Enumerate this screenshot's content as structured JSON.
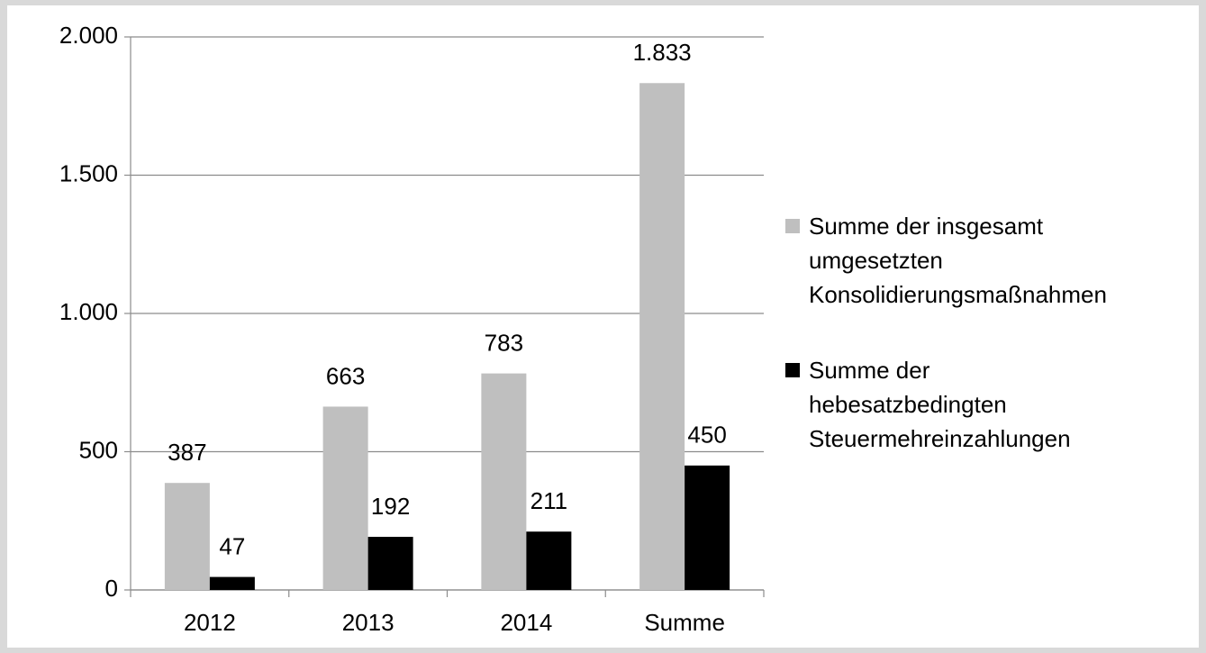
{
  "chart_data": {
    "type": "bar",
    "categories": [
      "2012",
      "2013",
      "2014",
      "Summe"
    ],
    "series": [
      {
        "name": "Summe der insgesamt umgesetzten Konsolidierungsmaßnahmen",
        "color": "#bfbfbf",
        "values": [
          387,
          663,
          783,
          1833
        ],
        "value_labels": [
          "387",
          "663",
          "783",
          "1.833"
        ]
      },
      {
        "name": "Summe der hebesatzbedingten Steuermehreinzahlungen",
        "color": "#000000",
        "values": [
          47,
          192,
          211,
          450
        ]
      }
    ],
    "ylim": [
      0,
      2000
    ],
    "yticks": [
      0,
      500,
      {
        "value": 1000,
        "label": "1.000"
      },
      {
        "value": 1500,
        "label": "1.500"
      },
      {
        "value": 2000,
        "label": "2.000"
      }
    ],
    "grid": true,
    "legend": "right"
  }
}
